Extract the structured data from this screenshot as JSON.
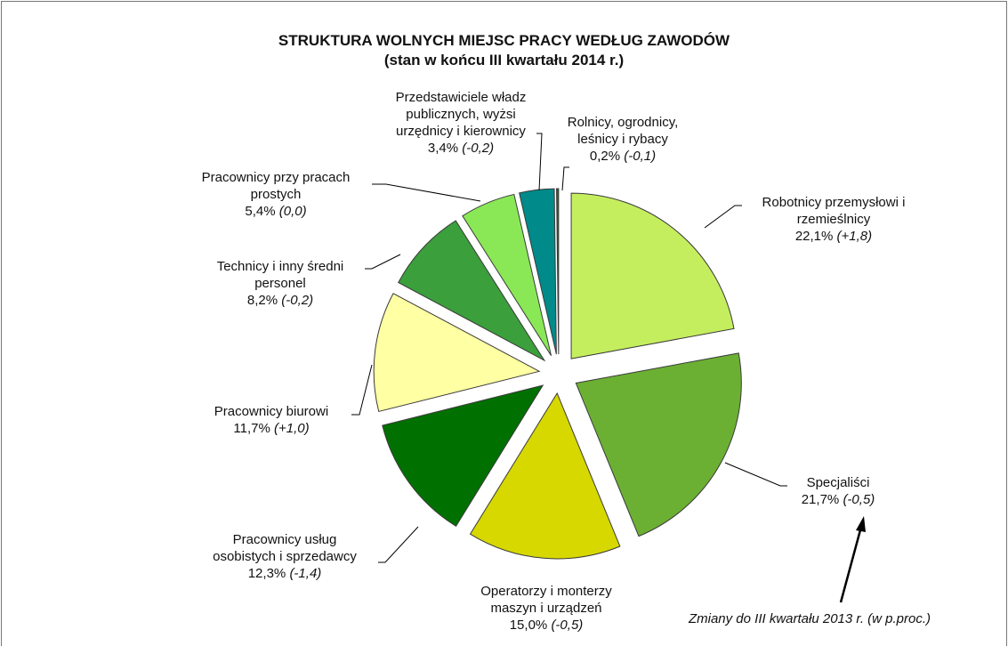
{
  "chart_data": {
    "type": "pie",
    "title": "STRUKTURA WOLNYCH MIEJSC PRACY WEDŁUG ZAWODÓW",
    "subtitle": "(stan w końcu III kwartału 2014 r.)",
    "categories": [
      "Robotnicy przemysłowi i rzemieślnicy",
      "Specjaliści",
      "Operatorzy i monterzy maszyn i urządzeń",
      "Pracownicy usług osobistych i sprzedawcy",
      "Pracownicy biurowi",
      "Technicy i inny średni personel",
      "Pracownicy przy pracach prostych",
      "Przedstawiciele władz publicznych, wyżsi urzędnicy i kierownicy",
      "Rolnicy, ogrodnicy, leśnicy i rybacy"
    ],
    "values": [
      22.1,
      21.7,
      15.0,
      12.3,
      11.7,
      8.2,
      5.4,
      3.4,
      0.2
    ],
    "value_labels": [
      "22,1%",
      "21,7%",
      "15,0%",
      "12,3%",
      "11,7%",
      "8,2%",
      "5,4%",
      "3,4%",
      "0,2%"
    ],
    "changes": [
      1.8,
      -0.5,
      -0.5,
      -1.4,
      1.0,
      -0.2,
      0.0,
      -0.2,
      -0.1
    ],
    "change_labels": [
      "(+1,8)",
      "(-0,5)",
      "(-0,5)",
      "(-1,4)",
      "(+1,0)",
      "(-0,2)",
      "(0,0)",
      "(-0,2)",
      "(-0,1)"
    ],
    "colors": [
      "#c5ee5e",
      "#6bb033",
      "#d6d800",
      "#007100",
      "#ffffa3",
      "#3b9f3b",
      "#8ae857",
      "#008a8a",
      "#2f5f2f"
    ],
    "annotation": "Zmiany do III kwartału 2013 r. (w p.proc.)"
  }
}
